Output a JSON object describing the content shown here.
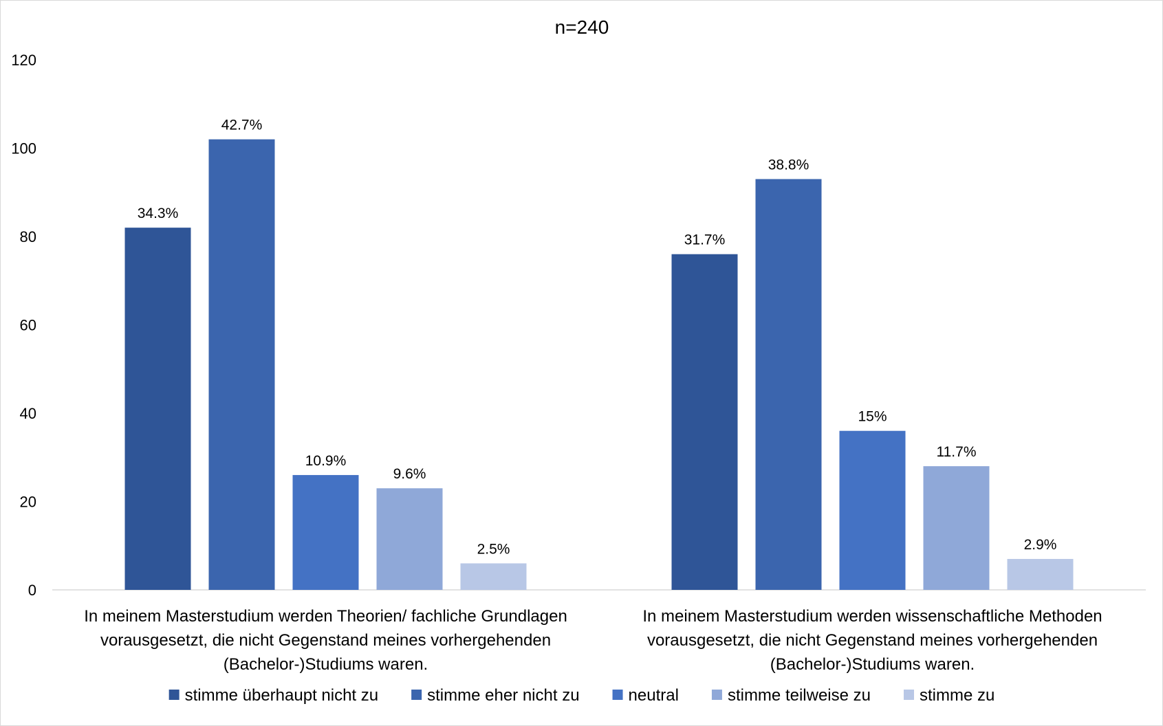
{
  "chart_data": {
    "type": "bar",
    "title": "n=240",
    "xlabel": "",
    "ylabel": "",
    "ylim": [
      0,
      120
    ],
    "yticks": [
      "0",
      "20",
      "40",
      "60",
      "80",
      "100",
      "120"
    ],
    "grid": false,
    "legend_position": "bottom",
    "categories": [
      [
        "In meinem Masterstudium werden Theorien/ fachliche Grundlagen",
        "vorausgesetzt, die nicht Gegenstand meines vorhergehenden",
        "(Bachelor-)Studiums waren."
      ],
      [
        "In meinem Masterstudium werden wissenschaftliche Methoden",
        "vorausgesetzt, die nicht Gegenstand meines vorhergehenden",
        "(Bachelor-)Studiums waren."
      ]
    ],
    "series": [
      {
        "name": "stimme überhaupt nicht zu",
        "color": "#2f5597",
        "values": [
          82,
          76
        ],
        "labels": [
          "34.3%",
          "31.7%"
        ]
      },
      {
        "name": "stimme eher nicht zu",
        "color": "#3b65ae",
        "values": [
          102,
          93
        ],
        "labels": [
          "42.7%",
          "38.8%"
        ]
      },
      {
        "name": "neutral",
        "color": "#4472c4",
        "values": [
          26,
          36
        ],
        "labels": [
          "10.9%",
          "15%"
        ]
      },
      {
        "name": "stimme teilweise zu",
        "color": "#8fa8d8",
        "values": [
          23,
          28
        ],
        "labels": [
          "9.6%",
          "11.7%"
        ]
      },
      {
        "name": "stimme zu",
        "color": "#b8c7e6",
        "values": [
          6,
          7
        ],
        "labels": [
          "2.5%",
          "2.9%"
        ]
      }
    ]
  }
}
